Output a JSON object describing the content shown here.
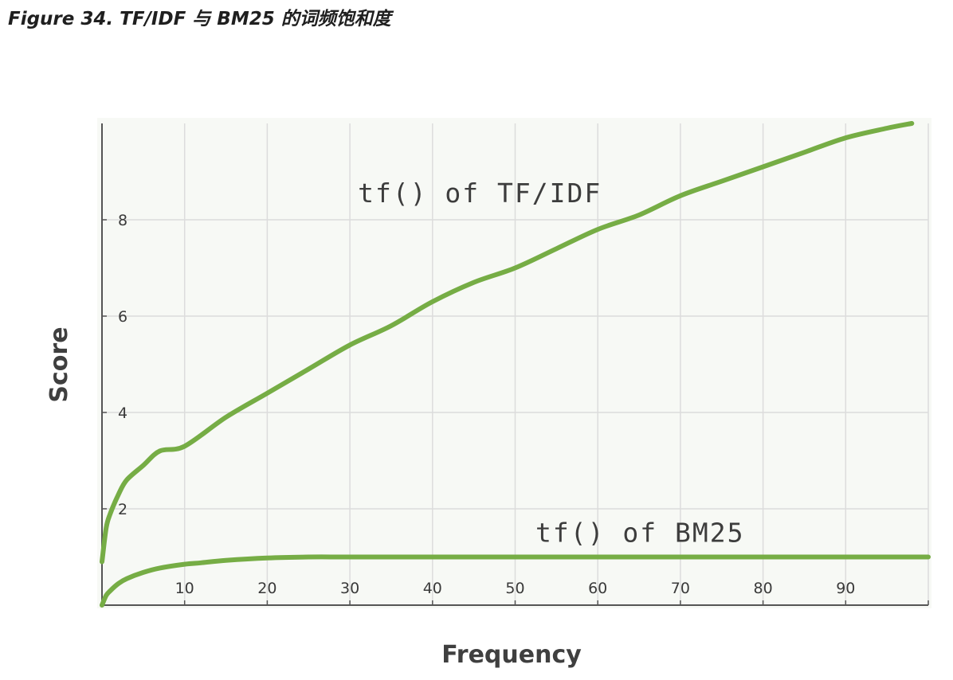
{
  "figure": {
    "caption": "Figure 34. TF/IDF 与 BM25 的词频饱和度"
  },
  "chart_data": {
    "type": "line",
    "xlabel": "Frequency",
    "ylabel": "Score",
    "xlim": [
      0,
      100
    ],
    "ylim": [
      0,
      10
    ],
    "x_ticks": [
      10,
      20,
      30,
      40,
      50,
      60,
      70,
      80,
      90
    ],
    "y_ticks": [
      2,
      4,
      6,
      8
    ],
    "grid": true,
    "colors": {
      "line": "#76ad45",
      "grid": "#dcdcdc",
      "plot_bg": "#f7f9f5",
      "axis": "#555555"
    },
    "series": [
      {
        "name": "tf() of TF/IDF",
        "x": [
          0,
          0.5,
          1,
          2,
          3,
          5,
          7,
          10,
          15,
          20,
          25,
          30,
          35,
          40,
          45,
          50,
          55,
          60,
          65,
          70,
          75,
          80,
          85,
          90,
          95,
          98
        ],
        "y": [
          0.9,
          1.6,
          1.9,
          2.3,
          2.6,
          2.9,
          3.2,
          3.3,
          3.9,
          4.4,
          4.9,
          5.4,
          5.8,
          6.3,
          6.7,
          7.0,
          7.4,
          7.8,
          8.1,
          8.5,
          8.8,
          9.1,
          9.4,
          9.7,
          9.9,
          10.0
        ]
      },
      {
        "name": "tf() of BM25",
        "x": [
          0,
          0.5,
          1,
          2,
          3,
          5,
          7,
          10,
          12,
          15,
          20,
          25,
          30,
          40,
          50,
          60,
          70,
          80,
          90,
          100
        ],
        "y": [
          0,
          0.2,
          0.3,
          0.45,
          0.55,
          0.68,
          0.77,
          0.85,
          0.88,
          0.93,
          0.98,
          1.0,
          1.0,
          1.0,
          1.0,
          1.0,
          1.0,
          1.0,
          1.0,
          1.0
        ]
      }
    ],
    "annotations": [
      {
        "text": "tf() of TF/IDF",
        "x": 30,
        "y": 8.5
      },
      {
        "text": "tf() of BM25",
        "x": 51.5,
        "y": 1.45
      }
    ]
  }
}
